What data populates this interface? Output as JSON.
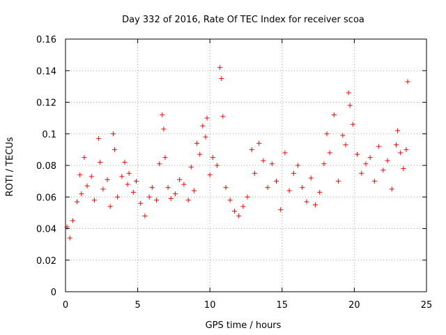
{
  "chart_data": {
    "type": "scatter",
    "title": "Day 332 of 2016, Rate Of TEC Index for receiver scoa",
    "xlabel": "GPS time / hours",
    "ylabel": "ROTI / TECUs",
    "xlim": [
      0,
      25
    ],
    "ylim": [
      0,
      0.16
    ],
    "xticks": [
      0,
      5,
      10,
      15,
      20,
      25
    ],
    "yticks": [
      0,
      0.02,
      0.04,
      0.06,
      0.08,
      0.1,
      0.12,
      0.14,
      0.16
    ],
    "xtick_labels": [
      "0",
      "5",
      "10",
      "15",
      "20",
      "25"
    ],
    "ytick_labels": [
      "0",
      "0.02",
      "0.04",
      "0.06",
      "0.08",
      "0.1",
      "0.12",
      "0.14",
      "0.16"
    ],
    "grid": true,
    "marker": "+",
    "marker_color": "#ff0000",
    "series": [
      {
        "x": [
          0.1,
          0.3,
          0.5,
          0.8,
          1.0,
          1.1,
          1.3,
          1.5,
          1.8,
          2.0,
          2.3,
          2.4,
          2.6,
          2.9,
          3.1,
          3.3,
          3.4,
          3.6,
          3.9,
          4.1,
          4.3,
          4.4,
          4.7,
          4.9,
          5.2,
          5.5,
          5.8,
          6.0,
          6.3,
          6.5,
          6.7,
          6.8,
          6.9,
          7.1,
          7.3,
          7.6,
          7.9,
          8.2,
          8.5,
          8.7,
          8.9,
          9.1,
          9.3,
          9.5,
          9.7,
          9.8,
          10.0,
          10.2,
          10.5,
          10.7,
          10.8,
          10.9,
          11.1,
          11.4,
          11.7,
          12.0,
          12.3,
          12.6,
          12.9,
          13.1,
          13.4,
          13.7,
          14.0,
          14.3,
          14.6,
          14.9,
          15.2,
          15.5,
          15.8,
          16.1,
          16.4,
          16.7,
          17.0,
          17.3,
          17.6,
          17.9,
          18.1,
          18.3,
          18.6,
          18.9,
          19.2,
          19.4,
          19.6,
          19.7,
          19.9,
          20.2,
          20.5,
          20.8,
          21.1,
          21.4,
          21.7,
          22.0,
          22.3,
          22.6,
          22.9,
          23.0,
          23.2,
          23.4,
          23.6,
          23.7
        ],
        "y": [
          0.041,
          0.034,
          0.045,
          0.057,
          0.074,
          0.062,
          0.085,
          0.067,
          0.073,
          0.058,
          0.097,
          0.082,
          0.065,
          0.071,
          0.054,
          0.1,
          0.09,
          0.06,
          0.073,
          0.082,
          0.068,
          0.075,
          0.063,
          0.07,
          0.056,
          0.048,
          0.06,
          0.066,
          0.058,
          0.081,
          0.112,
          0.103,
          0.085,
          0.066,
          0.059,
          0.062,
          0.071,
          0.068,
          0.058,
          0.079,
          0.064,
          0.094,
          0.087,
          0.105,
          0.098,
          0.11,
          0.074,
          0.085,
          0.08,
          0.142,
          0.135,
          0.111,
          0.066,
          0.058,
          0.051,
          0.048,
          0.054,
          0.06,
          0.09,
          0.075,
          0.094,
          0.083,
          0.066,
          0.081,
          0.07,
          0.052,
          0.088,
          0.064,
          0.075,
          0.08,
          0.066,
          0.057,
          0.072,
          0.055,
          0.063,
          0.081,
          0.1,
          0.088,
          0.112,
          0.07,
          0.099,
          0.093,
          0.126,
          0.118,
          0.106,
          0.087,
          0.075,
          0.081,
          0.085,
          0.07,
          0.092,
          0.077,
          0.083,
          0.065,
          0.093,
          0.102,
          0.088,
          0.078,
          0.09,
          0.133
        ]
      }
    ]
  }
}
